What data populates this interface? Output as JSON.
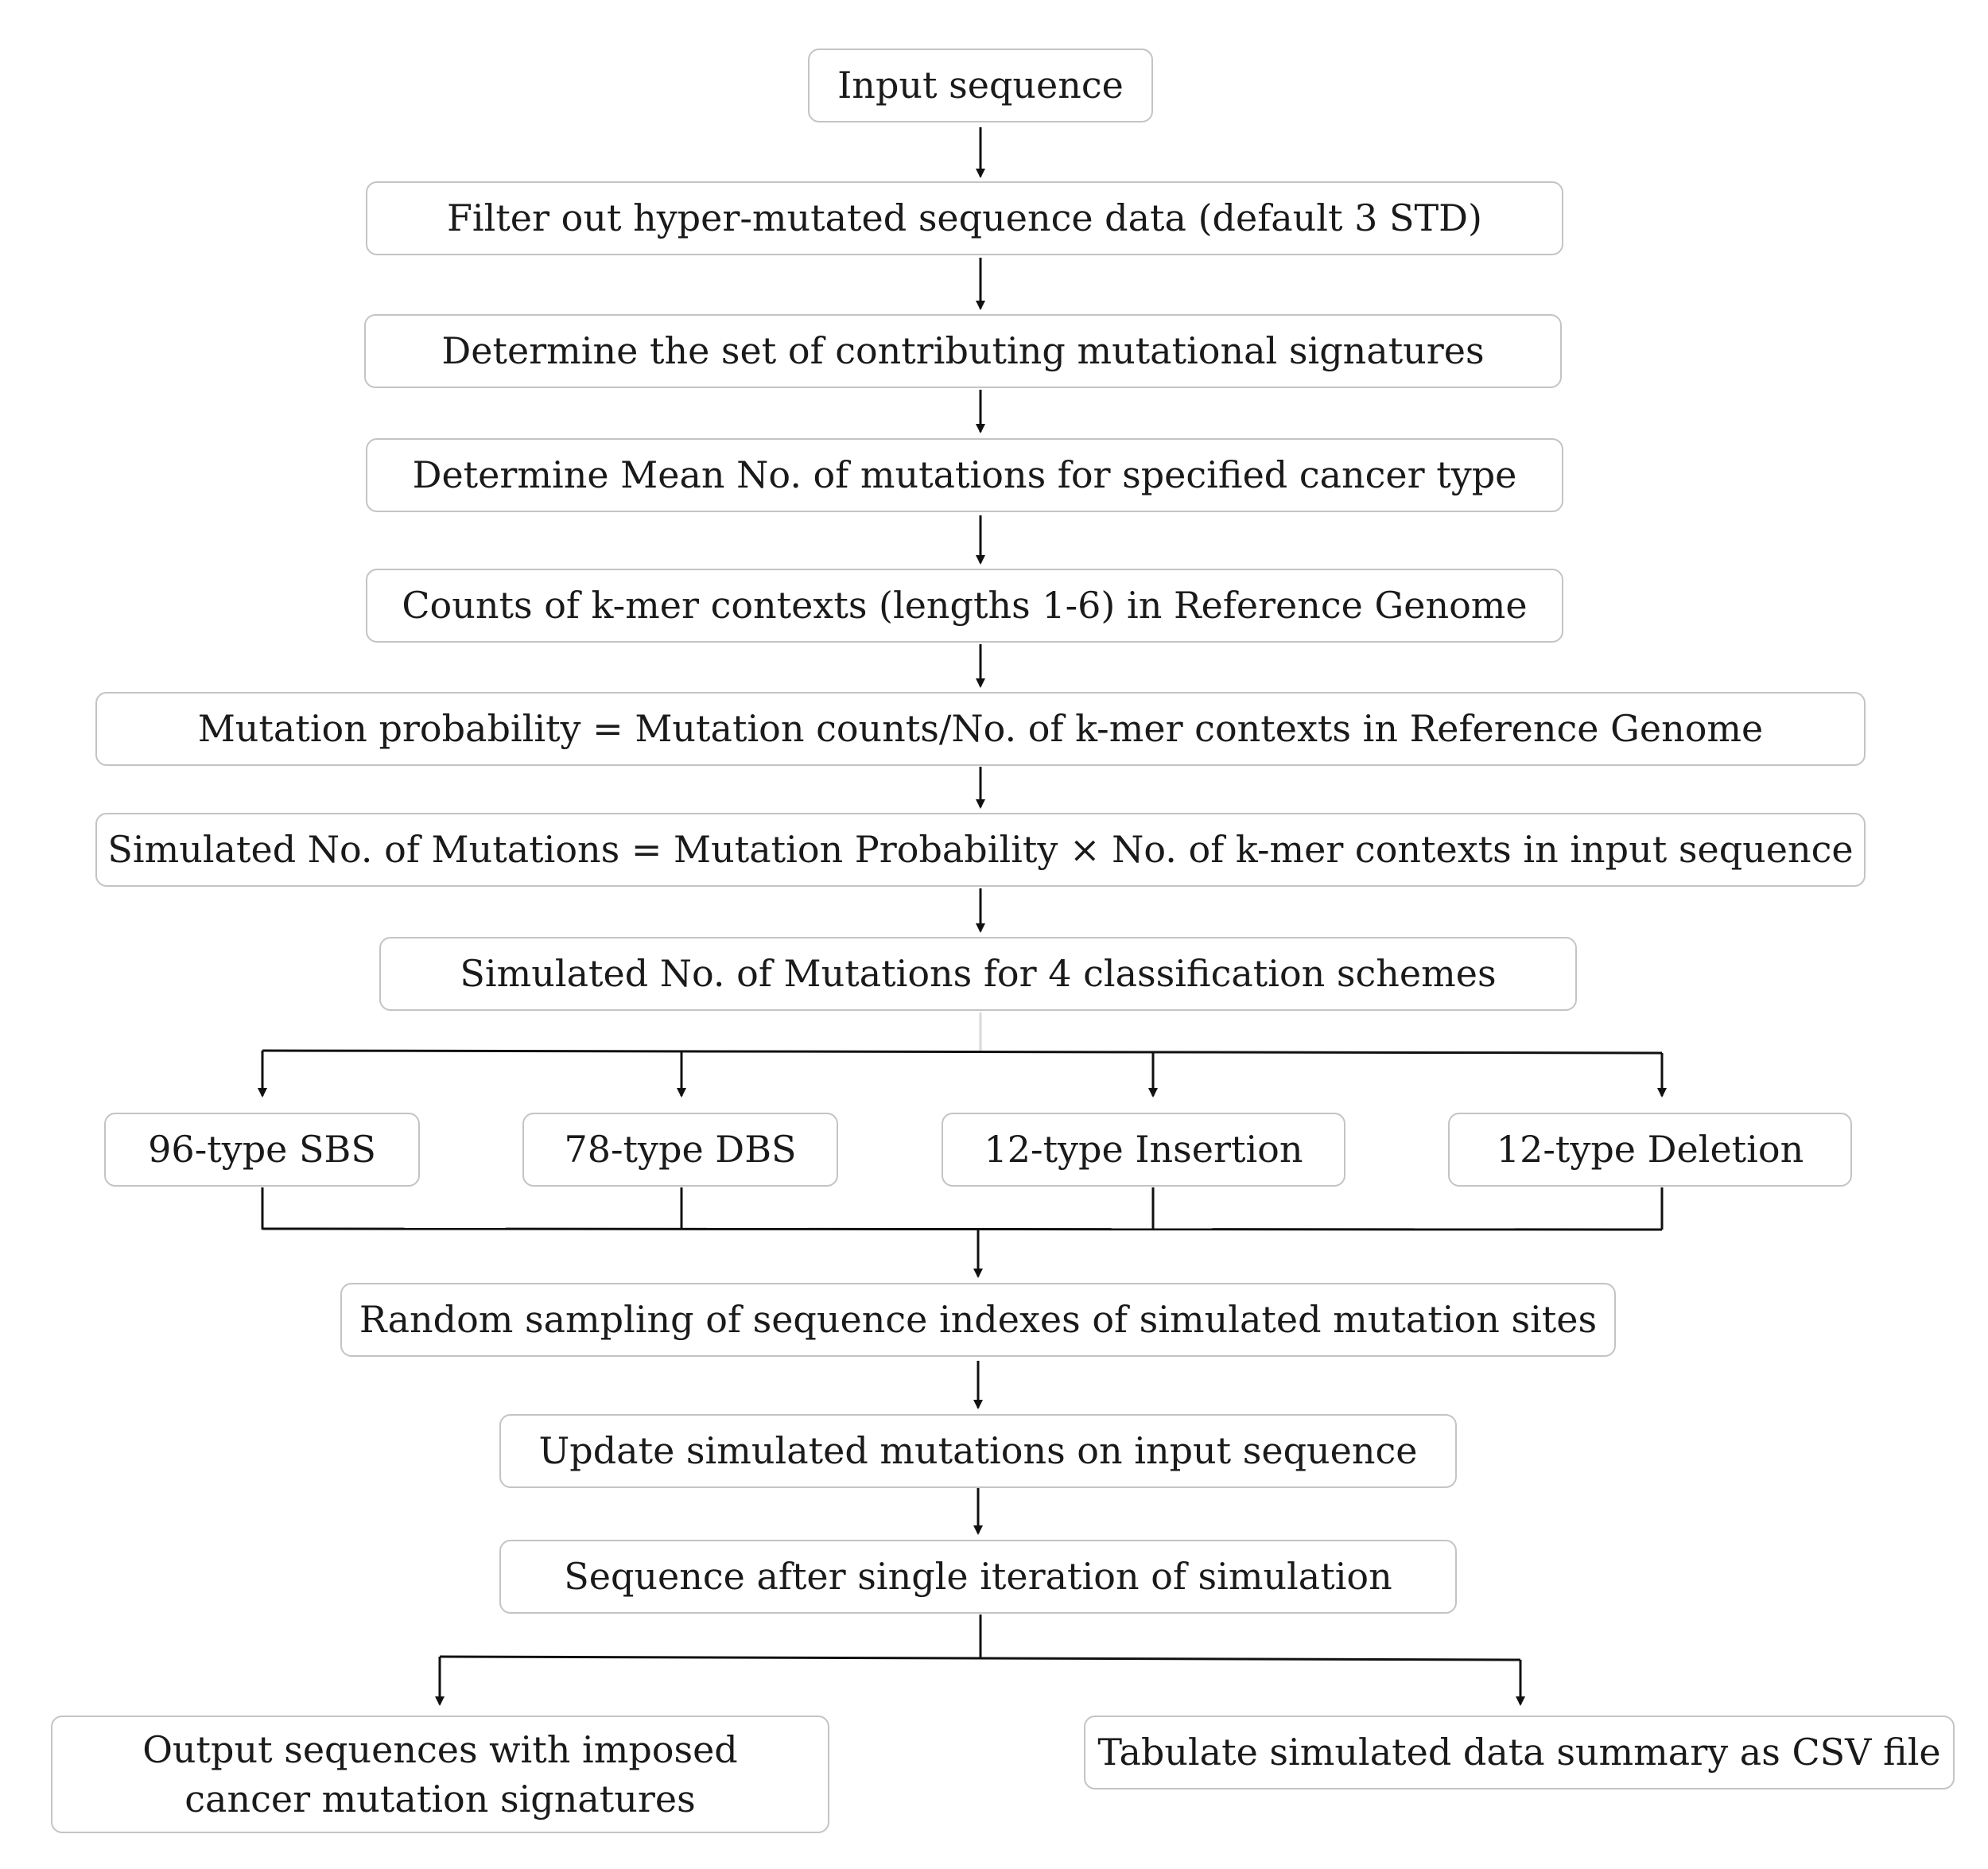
{
  "nodes": {
    "input": "Input sequence",
    "filter": "Filter out hyper-mutated sequence data (default 3 STD)",
    "signatures": "Determine the set of contributing mutational signatures",
    "mean": "Determine Mean No. of mutations for specified cancer type",
    "kmer": "Counts of k-mer contexts (lengths 1-6) in Reference Genome",
    "probability": "Mutation probability = Mutation counts/No. of k-mer contexts in Reference Genome",
    "simulated": "Simulated No. of Mutations  = Mutation Probability × No. of k-mer contexts in input sequence",
    "schemes": "Simulated No. of Mutations for 4 classification schemes",
    "sbs": "96-type SBS",
    "dbs": "78-type DBS",
    "insertion": "12-type Insertion",
    "deletion": "12-type Deletion",
    "sampling": "Random sampling of sequence indexes of simulated mutation sites",
    "update": "Update simulated mutations on input sequence",
    "iteration": "Sequence after single iteration of simulation",
    "output": "Output sequences with imposed cancer mutation signatures",
    "tabulate": "Tabulate simulated data summary as CSV file"
  },
  "colors": {
    "box_border": "#c4c4c4",
    "arrow": "#111111",
    "text": "#1a1a1a"
  }
}
